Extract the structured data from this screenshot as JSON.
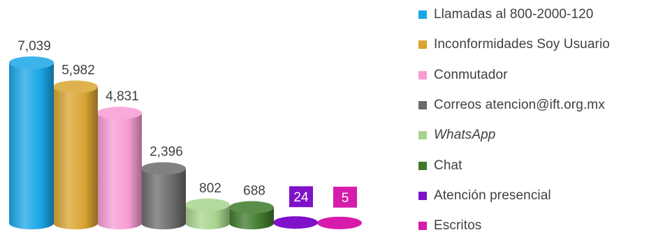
{
  "chart_data": {
    "type": "bar",
    "title": "",
    "xlabel": "",
    "ylabel": "",
    "ylim": [
      0,
      7039
    ],
    "grid": false,
    "legend_position": "right",
    "categories": [
      "Llamadas al 800-2000-120",
      "Inconformidades Soy Usuario",
      "Conmutador",
      "Correos atencion@ift.org.mx",
      "WhatsApp",
      "Chat",
      "Atención presencial",
      "Escritos"
    ],
    "values": [
      7039,
      5982,
      4831,
      2396,
      802,
      688,
      24,
      5
    ],
    "value_labels": [
      "7,039",
      "5,982",
      "4,831",
      "2,396",
      "802",
      "688",
      "24",
      "5"
    ],
    "colors": [
      "#1aa7e8",
      "#d9a431",
      "#f79cd3",
      "#6b6b6b",
      "#a8d48c",
      "#3f7a2b",
      "#7f12c9",
      "#d61cab"
    ],
    "italic": [
      false,
      false,
      false,
      false,
      true,
      false,
      false,
      false
    ],
    "boxed_labels": [
      false,
      false,
      false,
      false,
      false,
      false,
      true,
      true
    ]
  }
}
